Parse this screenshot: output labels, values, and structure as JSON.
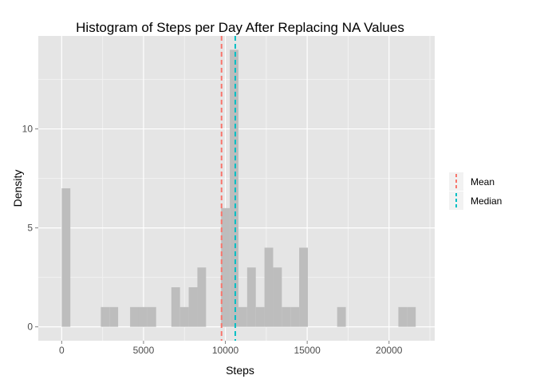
{
  "chart_data": {
    "type": "bar",
    "title": "Histogram of Steps per Day After Replacing NA Values",
    "xlabel": "Steps",
    "ylabel": "Density",
    "xlim": [
      -1430,
      22790
    ],
    "ylim": [
      -0.7,
      14.7
    ],
    "x_ticks": [
      0,
      5000,
      10000,
      15000,
      20000
    ],
    "x_tick_labels": [
      "0",
      "5000",
      "10000",
      "15000",
      "20000"
    ],
    "y_ticks": [
      0,
      5,
      10
    ],
    "y_tick_labels": [
      "0",
      "5",
      "10"
    ],
    "grid": true,
    "bin_width": 530,
    "bins": [
      {
        "start": 0,
        "end": 530,
        "count": 7
      },
      {
        "start": 2390,
        "end": 2920,
        "count": 1
      },
      {
        "start": 2920,
        "end": 3450,
        "count": 1
      },
      {
        "start": 4180,
        "end": 4710,
        "count": 1
      },
      {
        "start": 4710,
        "end": 5240,
        "count": 1
      },
      {
        "start": 5240,
        "end": 5770,
        "count": 1
      },
      {
        "start": 6700,
        "end": 7230,
        "count": 2
      },
      {
        "start": 7230,
        "end": 7760,
        "count": 1
      },
      {
        "start": 7760,
        "end": 8290,
        "count": 2
      },
      {
        "start": 8290,
        "end": 8820,
        "count": 3
      },
      {
        "start": 9740,
        "end": 10270,
        "count": 6
      },
      {
        "start": 10270,
        "end": 10800,
        "count": 14
      },
      {
        "start": 10800,
        "end": 11330,
        "count": 1
      },
      {
        "start": 11330,
        "end": 11860,
        "count": 3
      },
      {
        "start": 11860,
        "end": 12390,
        "count": 1
      },
      {
        "start": 12390,
        "end": 12920,
        "count": 4
      },
      {
        "start": 12920,
        "end": 13450,
        "count": 3
      },
      {
        "start": 13450,
        "end": 13980,
        "count": 1
      },
      {
        "start": 13980,
        "end": 14510,
        "count": 1
      },
      {
        "start": 14510,
        "end": 15040,
        "count": 4
      },
      {
        "start": 16830,
        "end": 17360,
        "count": 1
      },
      {
        "start": 20570,
        "end": 21100,
        "count": 1
      },
      {
        "start": 21100,
        "end": 21630,
        "count": 1
      }
    ],
    "bar_color": "#bdbdbd",
    "panel_color": "#e5e5e5",
    "vlines": [
      {
        "name": "Mean",
        "x": 9766,
        "color": "#f8766d"
      },
      {
        "name": "Median",
        "x": 10605,
        "color": "#00bfc4"
      }
    ],
    "legend": {
      "position": "right",
      "entries": [
        "Mean",
        "Median"
      ]
    }
  }
}
